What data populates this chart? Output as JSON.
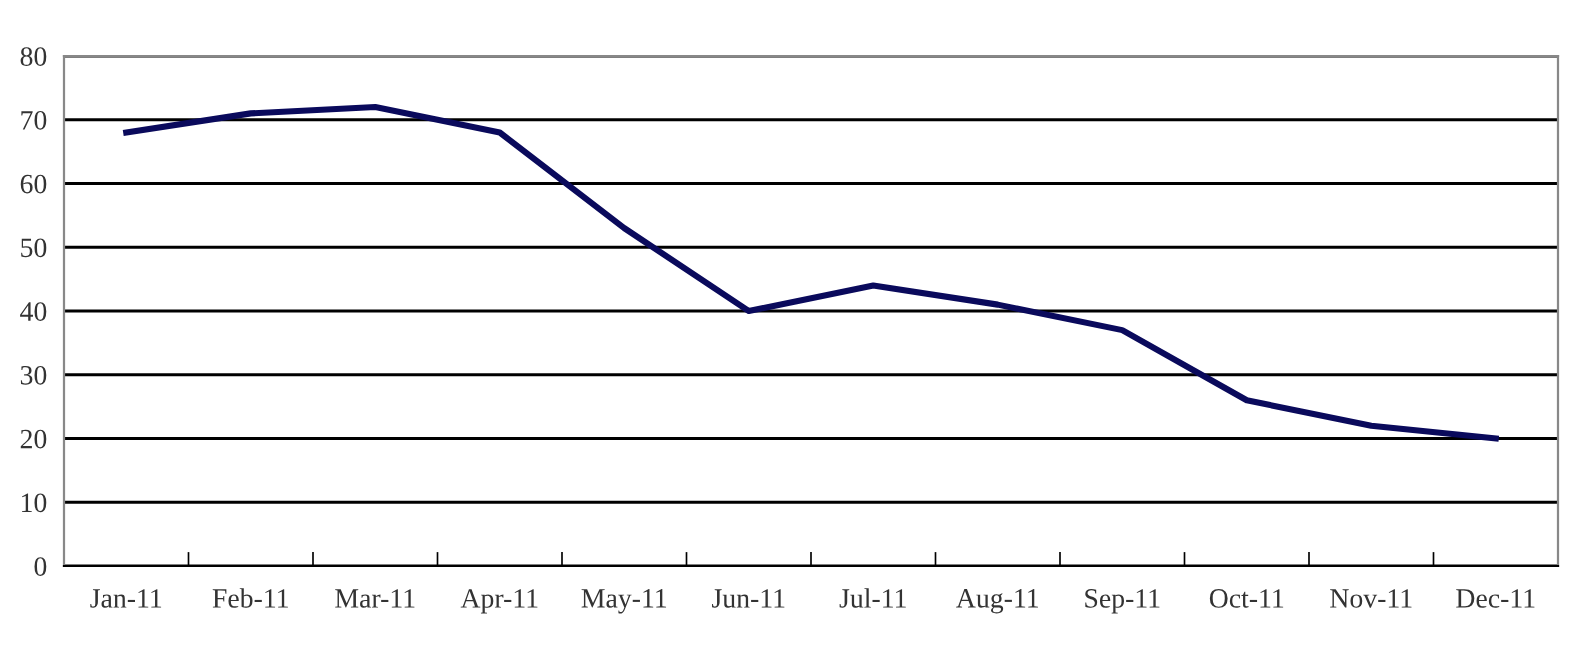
{
  "chart_data": {
    "type": "line",
    "categories": [
      "Jan-11",
      "Feb-11",
      "Mar-11",
      "Apr-11",
      "May-11",
      "Jun-11",
      "Jul-11",
      "Aug-11",
      "Sep-11",
      "Oct-11",
      "Nov-11",
      "Dec-11"
    ],
    "series": [
      {
        "color": "#0a0a5c",
        "values": [
          68,
          71,
          72,
          68,
          53,
          40,
          44,
          41,
          37,
          26,
          22,
          20
        ]
      }
    ],
    "ylim": [
      0,
      80
    ],
    "yticks": [
      0,
      10,
      20,
      30,
      40,
      50,
      60,
      70,
      80
    ],
    "grid": "y",
    "legend": false,
    "marker": "none",
    "line_style": "solid"
  }
}
